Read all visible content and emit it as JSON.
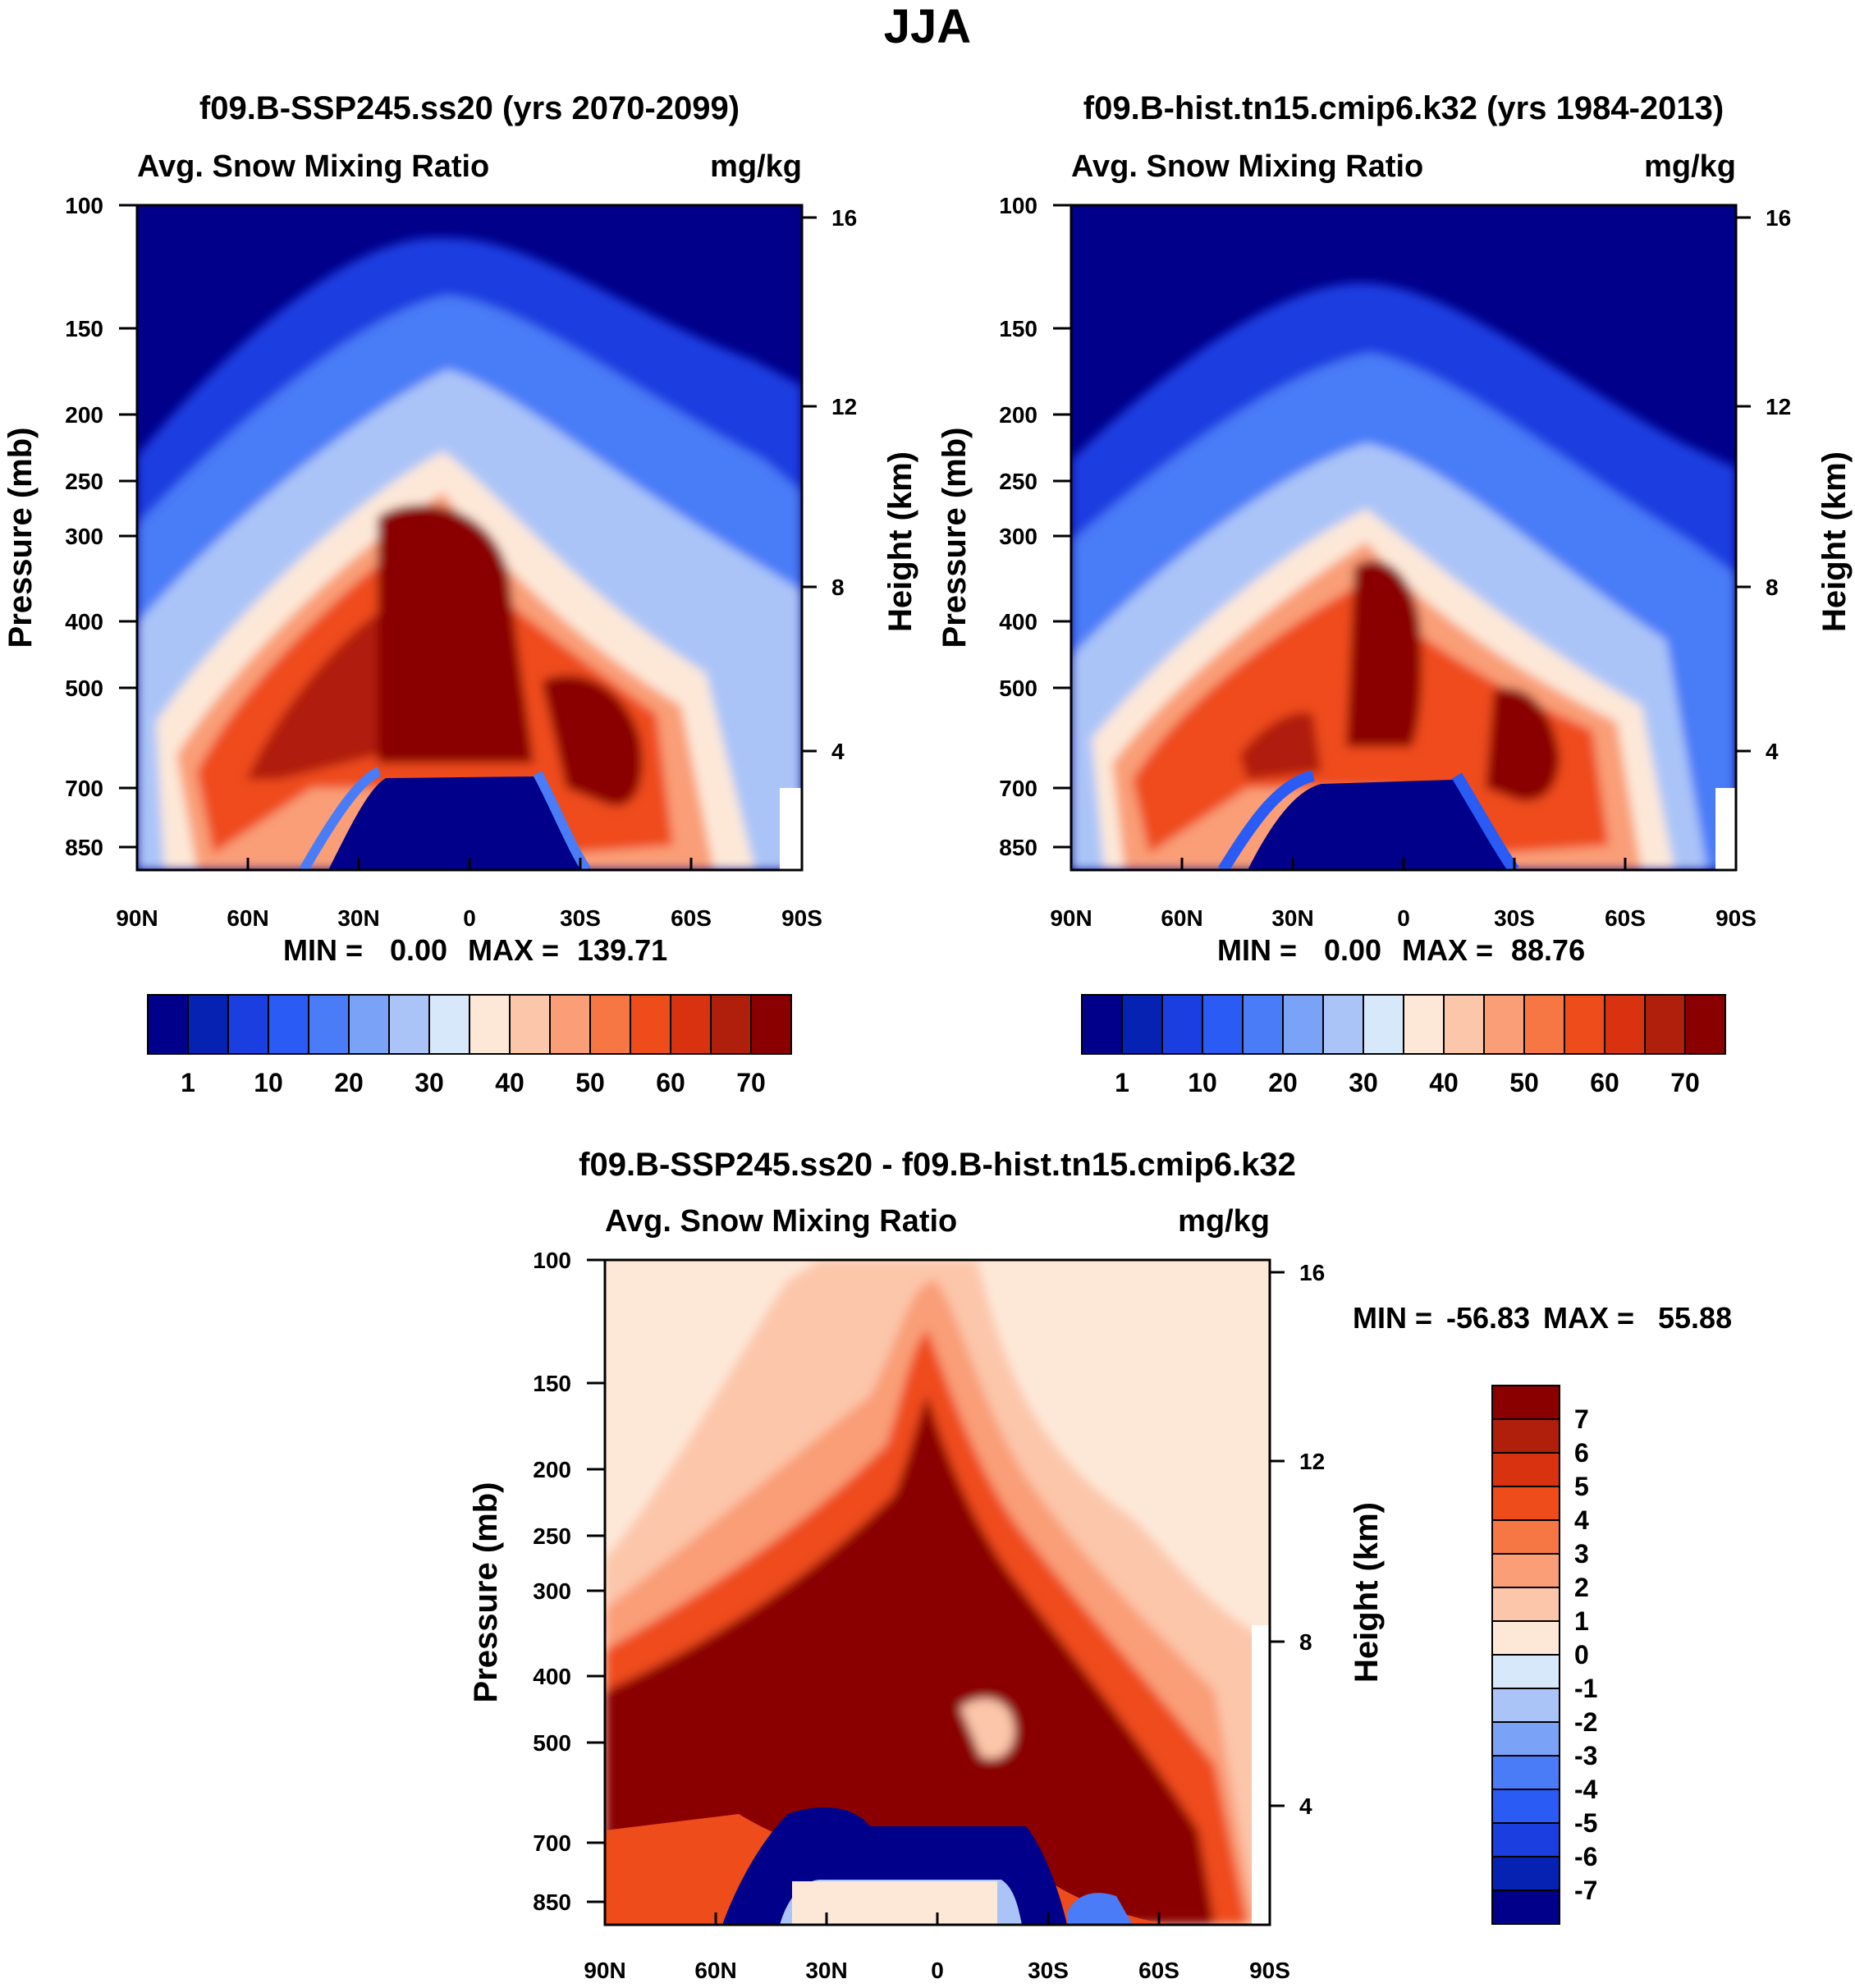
{
  "page_title": "JJA",
  "chart_data": [
    {
      "type": "contour",
      "title": "f09.B-SSP245.ss20 (yrs 2070-2099)",
      "left_label": "Avg. Snow Mixing Ratio",
      "right_label": "mg/kg",
      "ylabel": "Pressure (mb)",
      "ylabel_right": "Height (km)",
      "x_ticks": [
        "90N",
        "60N",
        "30N",
        "0",
        "30S",
        "60S",
        "90S"
      ],
      "x_values": [
        90,
        60,
        30,
        0,
        -30,
        -60,
        -90
      ],
      "p_ticks": [
        100,
        150,
        200,
        250,
        300,
        400,
        500,
        700,
        850
      ],
      "p_tick_labels": [
        "100",
        "150",
        "200",
        "250",
        "300",
        "400",
        "500",
        "700",
        "850"
      ],
      "height_ticks": [
        16,
        12,
        8,
        4
      ],
      "height_tick_labels": [
        "16",
        "12",
        "8",
        "4"
      ],
      "plim": [
        100,
        1000
      ],
      "min_label": "MIN =",
      "min_value": "0.00",
      "max_label": "MAX =",
      "max_value": "139.71",
      "colorbar": {
        "colors": [
          "#00008a",
          "#0622b2",
          "#1a3ee0",
          "#2a5bf5",
          "#4a7cf7",
          "#7aa2f7",
          "#aac4f8",
          "#d8e8fb",
          "#fde8d8",
          "#fcc6aa",
          "#f99e77",
          "#f67744",
          "#ef4c1c",
          "#d83210",
          "#b01e0c",
          "#8a0000"
        ],
        "labels": [
          "1",
          "10",
          "20",
          "30",
          "40",
          "50",
          "60",
          "70"
        ]
      },
      "peak_region": "tropical upper troposphere ~300-600 mb near 0-10N; near zero below ~700 mb in tropics"
    },
    {
      "type": "contour",
      "title": "f09.B-hist.tn15.cmip6.k32 (yrs 1984-2013)",
      "left_label": "Avg. Snow Mixing Ratio",
      "right_label": "mg/kg",
      "ylabel": "Pressure (mb)",
      "ylabel_right": "Height (km)",
      "x_ticks": [
        "90N",
        "60N",
        "30N",
        "0",
        "30S",
        "60S",
        "90S"
      ],
      "x_values": [
        90,
        60,
        30,
        0,
        -30,
        -60,
        -90
      ],
      "p_ticks": [
        100,
        150,
        200,
        250,
        300,
        400,
        500,
        700,
        850
      ],
      "p_tick_labels": [
        "100",
        "150",
        "200",
        "250",
        "300",
        "400",
        "500",
        "700",
        "850"
      ],
      "height_ticks": [
        16,
        12,
        8,
        4
      ],
      "height_tick_labels": [
        "16",
        "12",
        "8",
        "4"
      ],
      "plim": [
        100,
        1000
      ],
      "min_label": "MIN =",
      "min_value": "0.00",
      "max_label": "MAX =",
      "max_value": "88.76",
      "colorbar": {
        "colors": [
          "#00008a",
          "#0622b2",
          "#1a3ee0",
          "#2a5bf5",
          "#4a7cf7",
          "#7aa2f7",
          "#aac4f8",
          "#d8e8fb",
          "#fde8d8",
          "#fcc6aa",
          "#f99e77",
          "#f67744",
          "#ef4c1c",
          "#d83210",
          "#b01e0c",
          "#8a0000"
        ],
        "labels": [
          "1",
          "10",
          "20",
          "30",
          "40",
          "50",
          "60",
          "70"
        ]
      }
    },
    {
      "type": "contour",
      "title": "f09.B-SSP245.ss20 - f09.B-hist.tn15.cmip6.k32",
      "left_label": "Avg. Snow Mixing Ratio",
      "right_label": "mg/kg",
      "ylabel": "Pressure (mb)",
      "ylabel_right": "Height (km)",
      "x_ticks": [
        "90N",
        "60N",
        "30N",
        "0",
        "30S",
        "60S",
        "90S"
      ],
      "x_values": [
        90,
        60,
        30,
        0,
        -30,
        -60,
        -90
      ],
      "p_ticks": [
        100,
        150,
        200,
        250,
        300,
        400,
        500,
        700,
        850
      ],
      "p_tick_labels": [
        "100",
        "150",
        "200",
        "250",
        "300",
        "400",
        "500",
        "700",
        "850"
      ],
      "height_ticks": [
        16,
        12,
        8,
        4
      ],
      "height_tick_labels": [
        "16",
        "12",
        "8",
        "4"
      ],
      "plim": [
        100,
        1000
      ],
      "min_label": "MIN =",
      "min_value": "-56.83",
      "max_label": "MAX =",
      "max_value": "55.88",
      "colorbar": {
        "orientation": "vertical",
        "colors": [
          "#8a0000",
          "#b01e0c",
          "#d83210",
          "#ef4c1c",
          "#f67744",
          "#f99e77",
          "#fcc6aa",
          "#fde8d8",
          "#d8e8fb",
          "#aac4f8",
          "#7aa2f7",
          "#4a7cf7",
          "#2a5bf5",
          "#1a3ee0",
          "#0622b2",
          "#00008a"
        ],
        "labels": [
          "7",
          "6",
          "5",
          "4",
          "3",
          "2",
          "1",
          "0",
          "-1",
          "-2",
          "-3",
          "-4",
          "-5",
          "-6",
          "-7"
        ]
      }
    }
  ]
}
